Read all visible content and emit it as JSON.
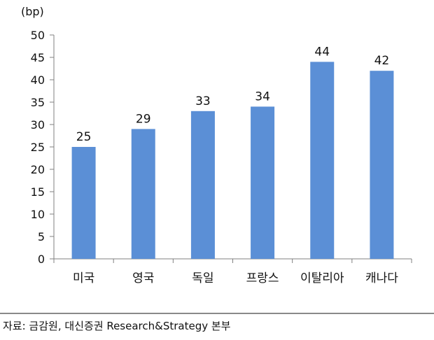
{
  "chart_data": {
    "type": "bar",
    "unit_label": "(bp)",
    "categories": [
      "미국",
      "영국",
      "독일",
      "프랑스",
      "이탈리아",
      "캐나다"
    ],
    "values": [
      25,
      29,
      33,
      34,
      44,
      42
    ],
    "data_labels": [
      "25",
      "29",
      "33",
      "34",
      "44",
      "42"
    ],
    "yticks": [
      0,
      5,
      10,
      15,
      20,
      25,
      30,
      35,
      40,
      45,
      50
    ],
    "ytick_labels": [
      "0",
      "5",
      "10",
      "15",
      "20",
      "25",
      "30",
      "35",
      "40",
      "45",
      "50"
    ],
    "ylim": [
      0,
      50
    ],
    "grid": false,
    "legend": "none",
    "bar_color": "#5b8fd6"
  },
  "source": "자료: 금감원, 대신증권 Research&Strategy 본부"
}
